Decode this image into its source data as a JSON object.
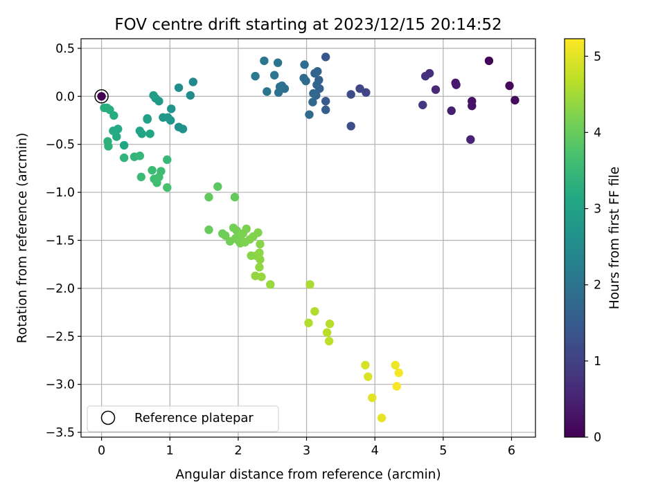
{
  "chart_data": {
    "type": "scatter",
    "title": "FOV centre drift starting at 2023/12/15 20:14:52",
    "xlabel": "Angular distance from reference (arcmin)",
    "ylabel": "Rotation from reference (arcmin)",
    "xlim": [
      -0.3,
      6.35
    ],
    "ylim": [
      -3.55,
      0.6
    ],
    "xticks": [
      0,
      1,
      2,
      3,
      4,
      5,
      6
    ],
    "xtick_labels": [
      "0",
      "1",
      "2",
      "3",
      "4",
      "5",
      "6"
    ],
    "yticks": [
      0.5,
      0.0,
      -0.5,
      -1.0,
      -1.5,
      -2.0,
      -2.5,
      -3.0,
      -3.5
    ],
    "ytick_labels": [
      "0.5",
      "0.0",
      "−0.5",
      "−1.0",
      "−1.5",
      "−2.0",
      "−2.5",
      "−3.0",
      "−3.5"
    ],
    "grid": true,
    "colormap": "viridis",
    "colorbar": {
      "label": "Hours from first FF file",
      "range": [
        0,
        5.23
      ],
      "ticks": [
        0,
        1,
        2,
        3,
        4,
        5
      ],
      "tick_labels": [
        "0",
        "1",
        "2",
        "3",
        "4",
        "5"
      ]
    },
    "legend": {
      "position": "lower-left",
      "entries": [
        "Reference platepar"
      ]
    },
    "reference_point": {
      "x": 0,
      "y": 0
    },
    "points": [
      {
        "x": 5.67,
        "y": 0.37,
        "c": 0.05
      },
      {
        "x": 5.97,
        "y": 0.11,
        "c": 0.1
      },
      {
        "x": 6.05,
        "y": -0.04,
        "c": 0.15
      },
      {
        "x": 5.42,
        "y": -0.05,
        "c": 0.25
      },
      {
        "x": 5.42,
        "y": -0.1,
        "c": 0.28
      },
      {
        "x": 5.18,
        "y": 0.14,
        "c": 0.35
      },
      {
        "x": 5.19,
        "y": 0.12,
        "c": 0.38
      },
      {
        "x": 5.12,
        "y": -0.15,
        "c": 0.45
      },
      {
        "x": 5.4,
        "y": -0.45,
        "c": 0.5
      },
      {
        "x": 4.89,
        "y": 0.07,
        "c": 0.6
      },
      {
        "x": 4.8,
        "y": 0.24,
        "c": 0.7
      },
      {
        "x": 4.74,
        "y": 0.21,
        "c": 0.75
      },
      {
        "x": 4.7,
        "y": -0.09,
        "c": 0.85
      },
      {
        "x": 3.87,
        "y": 0.04,
        "c": 1.05
      },
      {
        "x": 3.78,
        "y": 0.08,
        "c": 1.1
      },
      {
        "x": 3.65,
        "y": 0.02,
        "c": 1.2
      },
      {
        "x": 3.65,
        "y": -0.31,
        "c": 1.25
      },
      {
        "x": 3.28,
        "y": 0.41,
        "c": 1.4
      },
      {
        "x": 3.28,
        "y": -0.05,
        "c": 1.5
      },
      {
        "x": 3.28,
        "y": -0.14,
        "c": 1.55
      },
      {
        "x": 3.18,
        "y": 0.17,
        "c": 1.6
      },
      {
        "x": 3.19,
        "y": 0.08,
        "c": 1.62
      },
      {
        "x": 3.12,
        "y": 0.24,
        "c": 1.65
      },
      {
        "x": 3.16,
        "y": 0.26,
        "c": 1.68
      },
      {
        "x": 3.15,
        "y": 0.12,
        "c": 1.7
      },
      {
        "x": 3.14,
        "y": 0.01,
        "c": 1.72
      },
      {
        "x": 3.1,
        "y": 0.03,
        "c": 1.75
      },
      {
        "x": 3.09,
        "y": -0.06,
        "c": 1.78
      },
      {
        "x": 3.04,
        "y": -0.19,
        "c": 1.8
      },
      {
        "x": 2.99,
        "y": 0.16,
        "c": 1.82
      },
      {
        "x": 2.96,
        "y": 0.19,
        "c": 1.84
      },
      {
        "x": 2.97,
        "y": 0.33,
        "c": 1.86
      },
      {
        "x": 2.68,
        "y": 0.08,
        "c": 1.92
      },
      {
        "x": 2.64,
        "y": 0.11,
        "c": 1.95
      },
      {
        "x": 2.61,
        "y": 0.1,
        "c": 1.97
      },
      {
        "x": 2.59,
        "y": 0.04,
        "c": 1.98
      },
      {
        "x": 2.58,
        "y": 0.35,
        "c": 2.0
      },
      {
        "x": 2.53,
        "y": 0.22,
        "c": 2.02
      },
      {
        "x": 2.42,
        "y": 0.05,
        "c": 2.05
      },
      {
        "x": 2.38,
        "y": 0.37,
        "c": 2.08
      },
      {
        "x": 2.25,
        "y": 0.21,
        "c": 2.12
      },
      {
        "x": 1.34,
        "y": 0.15,
        "c": 2.45
      },
      {
        "x": 1.3,
        "y": 0.01,
        "c": 2.5
      },
      {
        "x": 1.13,
        "y": 0.09,
        "c": 2.55
      },
      {
        "x": 1.13,
        "y": -0.32,
        "c": 2.6
      },
      {
        "x": 1.19,
        "y": -0.34,
        "c": 2.62
      },
      {
        "x": 1.02,
        "y": -0.13,
        "c": 2.68
      },
      {
        "x": 1.01,
        "y": -0.25,
        "c": 2.7
      },
      {
        "x": 0.9,
        "y": -0.22,
        "c": 2.75
      },
      {
        "x": 0.97,
        "y": -0.22,
        "c": 2.78
      },
      {
        "x": 0.84,
        "y": -0.05,
        "c": 2.82
      },
      {
        "x": 0.79,
        "y": -0.02,
        "c": 2.85
      },
      {
        "x": 0.76,
        "y": 0.01,
        "c": 2.88
      },
      {
        "x": 0.67,
        "y": -0.24,
        "c": 2.95
      },
      {
        "x": 0.67,
        "y": -0.23,
        "c": 2.97
      },
      {
        "x": 0.56,
        "y": -0.36,
        "c": 3.02
      },
      {
        "x": 0.59,
        "y": -0.39,
        "c": 3.05
      },
      {
        "x": 0.71,
        "y": -0.39,
        "c": 3.08
      },
      {
        "x": 0.33,
        "y": -0.51,
        "c": 3.12
      },
      {
        "x": 0.24,
        "y": -0.34,
        "c": 3.15
      },
      {
        "x": 0.22,
        "y": -0.42,
        "c": 3.18
      },
      {
        "x": 0.17,
        "y": -0.36,
        "c": 3.2
      },
      {
        "x": 0.18,
        "y": -0.2,
        "c": 3.22
      },
      {
        "x": 0.12,
        "y": -0.14,
        "c": 3.25
      },
      {
        "x": 0.08,
        "y": -0.12,
        "c": 3.27
      },
      {
        "x": 0.04,
        "y": -0.12,
        "c": 3.28
      },
      {
        "x": 0.09,
        "y": -0.47,
        "c": 3.32
      },
      {
        "x": 0.1,
        "y": -0.52,
        "c": 3.35
      },
      {
        "x": 0.33,
        "y": -0.64,
        "c": 3.4
      },
      {
        "x": 0.48,
        "y": -0.63,
        "c": 3.42
      },
      {
        "x": 0.56,
        "y": -0.62,
        "c": 3.45
      },
      {
        "x": 0.96,
        "y": -0.66,
        "c": 3.48
      },
      {
        "x": 0.58,
        "y": -0.84,
        "c": 3.52
      },
      {
        "x": 0.74,
        "y": -0.77,
        "c": 3.55
      },
      {
        "x": 0.87,
        "y": -0.78,
        "c": 3.58
      },
      {
        "x": 0.77,
        "y": -0.86,
        "c": 3.6
      },
      {
        "x": 0.84,
        "y": -0.84,
        "c": 3.62
      },
      {
        "x": 0.81,
        "y": -0.9,
        "c": 3.64
      },
      {
        "x": 0.96,
        "y": -0.95,
        "c": 3.68
      },
      {
        "x": 1.7,
        "y": -0.94,
        "c": 3.9
      },
      {
        "x": 1.57,
        "y": -1.05,
        "c": 3.95
      },
      {
        "x": 1.95,
        "y": -1.05,
        "c": 3.98
      },
      {
        "x": 1.57,
        "y": -1.39,
        "c": 4.02
      },
      {
        "x": 1.77,
        "y": -1.43,
        "c": 4.05
      },
      {
        "x": 1.81,
        "y": -1.45,
        "c": 4.08
      },
      {
        "x": 1.88,
        "y": -1.51,
        "c": 4.1
      },
      {
        "x": 1.93,
        "y": -1.37,
        "c": 4.12
      },
      {
        "x": 1.98,
        "y": -1.4,
        "c": 4.13
      },
      {
        "x": 1.96,
        "y": -1.48,
        "c": 4.14
      },
      {
        "x": 2.0,
        "y": -1.5,
        "c": 4.15
      },
      {
        "x": 2.03,
        "y": -1.53,
        "c": 4.16
      },
      {
        "x": 2.04,
        "y": -1.45,
        "c": 4.17
      },
      {
        "x": 2.07,
        "y": -1.43,
        "c": 4.18
      },
      {
        "x": 2.12,
        "y": -1.38,
        "c": 4.2
      },
      {
        "x": 2.1,
        "y": -1.52,
        "c": 4.21
      },
      {
        "x": 2.17,
        "y": -1.49,
        "c": 4.22
      },
      {
        "x": 2.22,
        "y": -1.46,
        "c": 4.24
      },
      {
        "x": 2.29,
        "y": -1.42,
        "c": 4.25
      },
      {
        "x": 2.19,
        "y": -1.66,
        "c": 4.28
      },
      {
        "x": 2.26,
        "y": -1.66,
        "c": 4.3
      },
      {
        "x": 2.32,
        "y": -1.54,
        "c": 4.31
      },
      {
        "x": 2.31,
        "y": -1.63,
        "c": 4.32
      },
      {
        "x": 2.32,
        "y": -1.7,
        "c": 4.34
      },
      {
        "x": 2.31,
        "y": -1.78,
        "c": 4.36
      },
      {
        "x": 2.25,
        "y": -1.87,
        "c": 4.38
      },
      {
        "x": 2.34,
        "y": -1.88,
        "c": 4.4
      },
      {
        "x": 2.47,
        "y": -1.96,
        "c": 4.42
      },
      {
        "x": 3.05,
        "y": -1.96,
        "c": 4.55
      },
      {
        "x": 3.12,
        "y": -2.24,
        "c": 4.6
      },
      {
        "x": 3.03,
        "y": -2.36,
        "c": 4.62
      },
      {
        "x": 3.34,
        "y": -2.37,
        "c": 4.65
      },
      {
        "x": 3.3,
        "y": -2.46,
        "c": 4.67
      },
      {
        "x": 3.33,
        "y": -2.55,
        "c": 4.7
      },
      {
        "x": 3.86,
        "y": -2.8,
        "c": 4.9
      },
      {
        "x": 3.9,
        "y": -2.92,
        "c": 4.95
      },
      {
        "x": 3.96,
        "y": -3.14,
        "c": 5.0
      },
      {
        "x": 4.1,
        "y": -3.35,
        "c": 5.05
      },
      {
        "x": 4.3,
        "y": -2.8,
        "c": 5.1
      },
      {
        "x": 4.35,
        "y": -2.88,
        "c": 5.15
      },
      {
        "x": 4.32,
        "y": -3.02,
        "c": 5.18
      }
    ]
  }
}
